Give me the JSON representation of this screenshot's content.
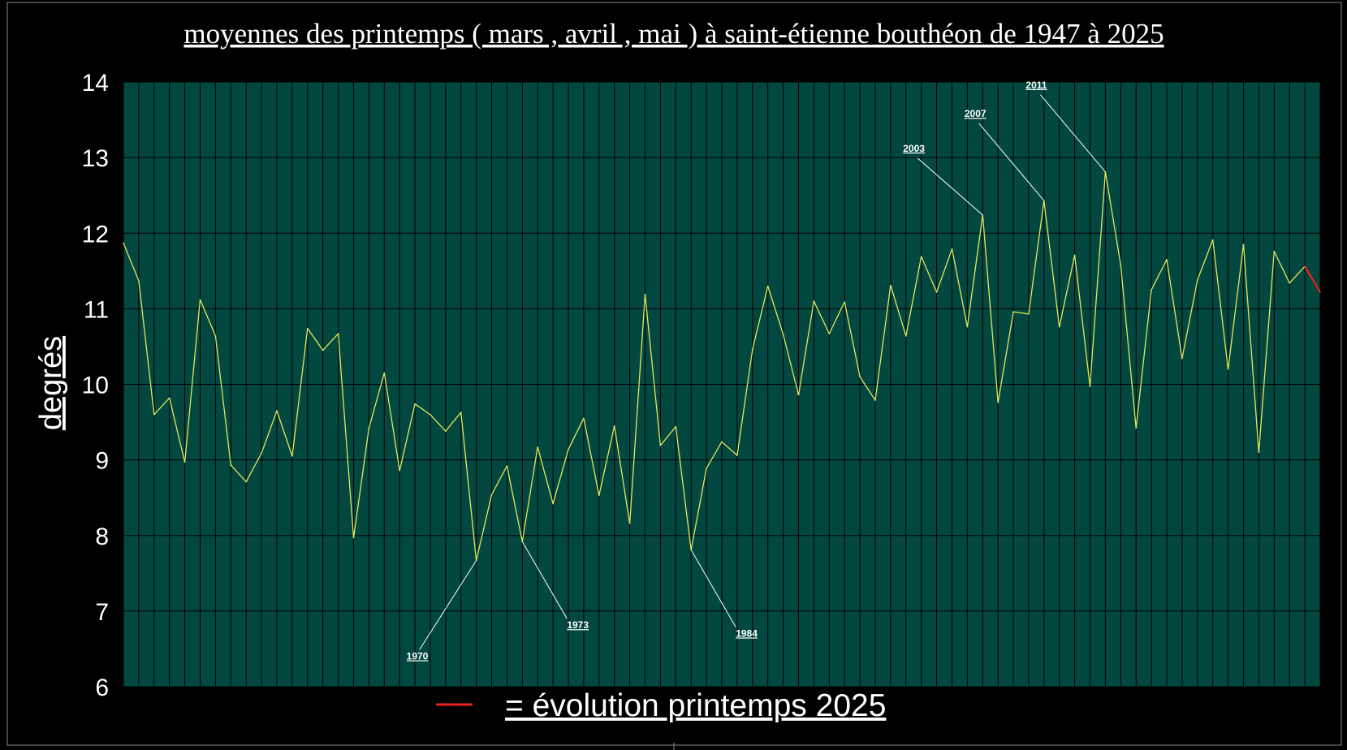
{
  "chart_data": {
    "type": "line",
    "title": "moyennes des printemps ( mars , avril , mai ) à saint-étienne bouthéon de 1947 à 2025",
    "ylabel": "degrés",
    "xlabel": "",
    "ylim": [
      6,
      14
    ],
    "yticks": [
      6,
      7,
      8,
      9,
      10,
      11,
      12,
      13,
      14
    ],
    "grid": true,
    "x_start": 1947,
    "x": [
      1947,
      1948,
      1949,
      1950,
      1951,
      1952,
      1953,
      1954,
      1955,
      1956,
      1957,
      1958,
      1959,
      1960,
      1961,
      1962,
      1963,
      1964,
      1965,
      1966,
      1967,
      1968,
      1969,
      1970,
      1971,
      1972,
      1973,
      1974,
      1975,
      1976,
      1977,
      1978,
      1979,
      1980,
      1981,
      1982,
      1983,
      1984,
      1985,
      1986,
      1987,
      1988,
      1989,
      1990,
      1991,
      1992,
      1993,
      1994,
      1995,
      1996,
      1997,
      1998,
      1999,
      2000,
      2001,
      2002,
      2003,
      2004,
      2005,
      2006,
      2007,
      2008,
      2009,
      2010,
      2011,
      2012,
      2013,
      2014,
      2015,
      2016,
      2017,
      2018,
      2019,
      2020,
      2021,
      2022,
      2023,
      2024
    ],
    "series": [
      {
        "values": [
          11.87,
          11.37,
          9.6,
          9.82,
          8.97,
          11.12,
          10.64,
          8.93,
          8.71,
          9.09,
          9.65,
          9.05,
          10.74,
          10.45,
          10.67,
          7.97,
          9.42,
          10.15,
          8.86,
          9.74,
          9.6,
          9.38,
          9.63,
          7.67,
          8.54,
          8.92,
          7.92,
          9.17,
          8.42,
          9.14,
          9.55,
          8.53,
          9.45,
          8.16,
          11.19,
          9.19,
          9.44,
          7.81,
          8.89,
          9.24,
          9.06,
          10.46,
          11.3,
          10.66,
          9.86,
          11.1,
          10.67,
          11.09,
          10.1,
          9.79,
          11.31,
          10.64,
          11.69,
          11.22,
          11.79,
          10.76,
          12.24,
          9.76,
          10.96,
          10.93,
          12.43,
          10.76,
          11.71,
          9.97,
          12.81,
          11.58,
          9.42,
          11.25,
          11.65,
          10.34,
          11.38,
          11.91,
          10.2,
          11.85,
          9.1,
          11.76,
          11.34,
          11.56
        ],
        "color": "#e6e65a"
      },
      {
        "name": "= évolution printemps 2025",
        "x": [
          2024,
          2025
        ],
        "values": [
          11.56,
          11.22
        ],
        "color": "#e8231e"
      }
    ],
    "annotations": [
      {
        "text": "1970",
        "year": 1970
      },
      {
        "text": "1973",
        "year": 1973
      },
      {
        "text": "1984",
        "year": 1984
      },
      {
        "text": "2003",
        "year": 2003
      },
      {
        "text": "2007",
        "year": 2007
      },
      {
        "text": "2011",
        "year": 2011
      }
    ],
    "colors": {
      "plot_bg": "#024840",
      "grid": "#000000",
      "text": "#ffffff",
      "background": "#000000"
    }
  }
}
